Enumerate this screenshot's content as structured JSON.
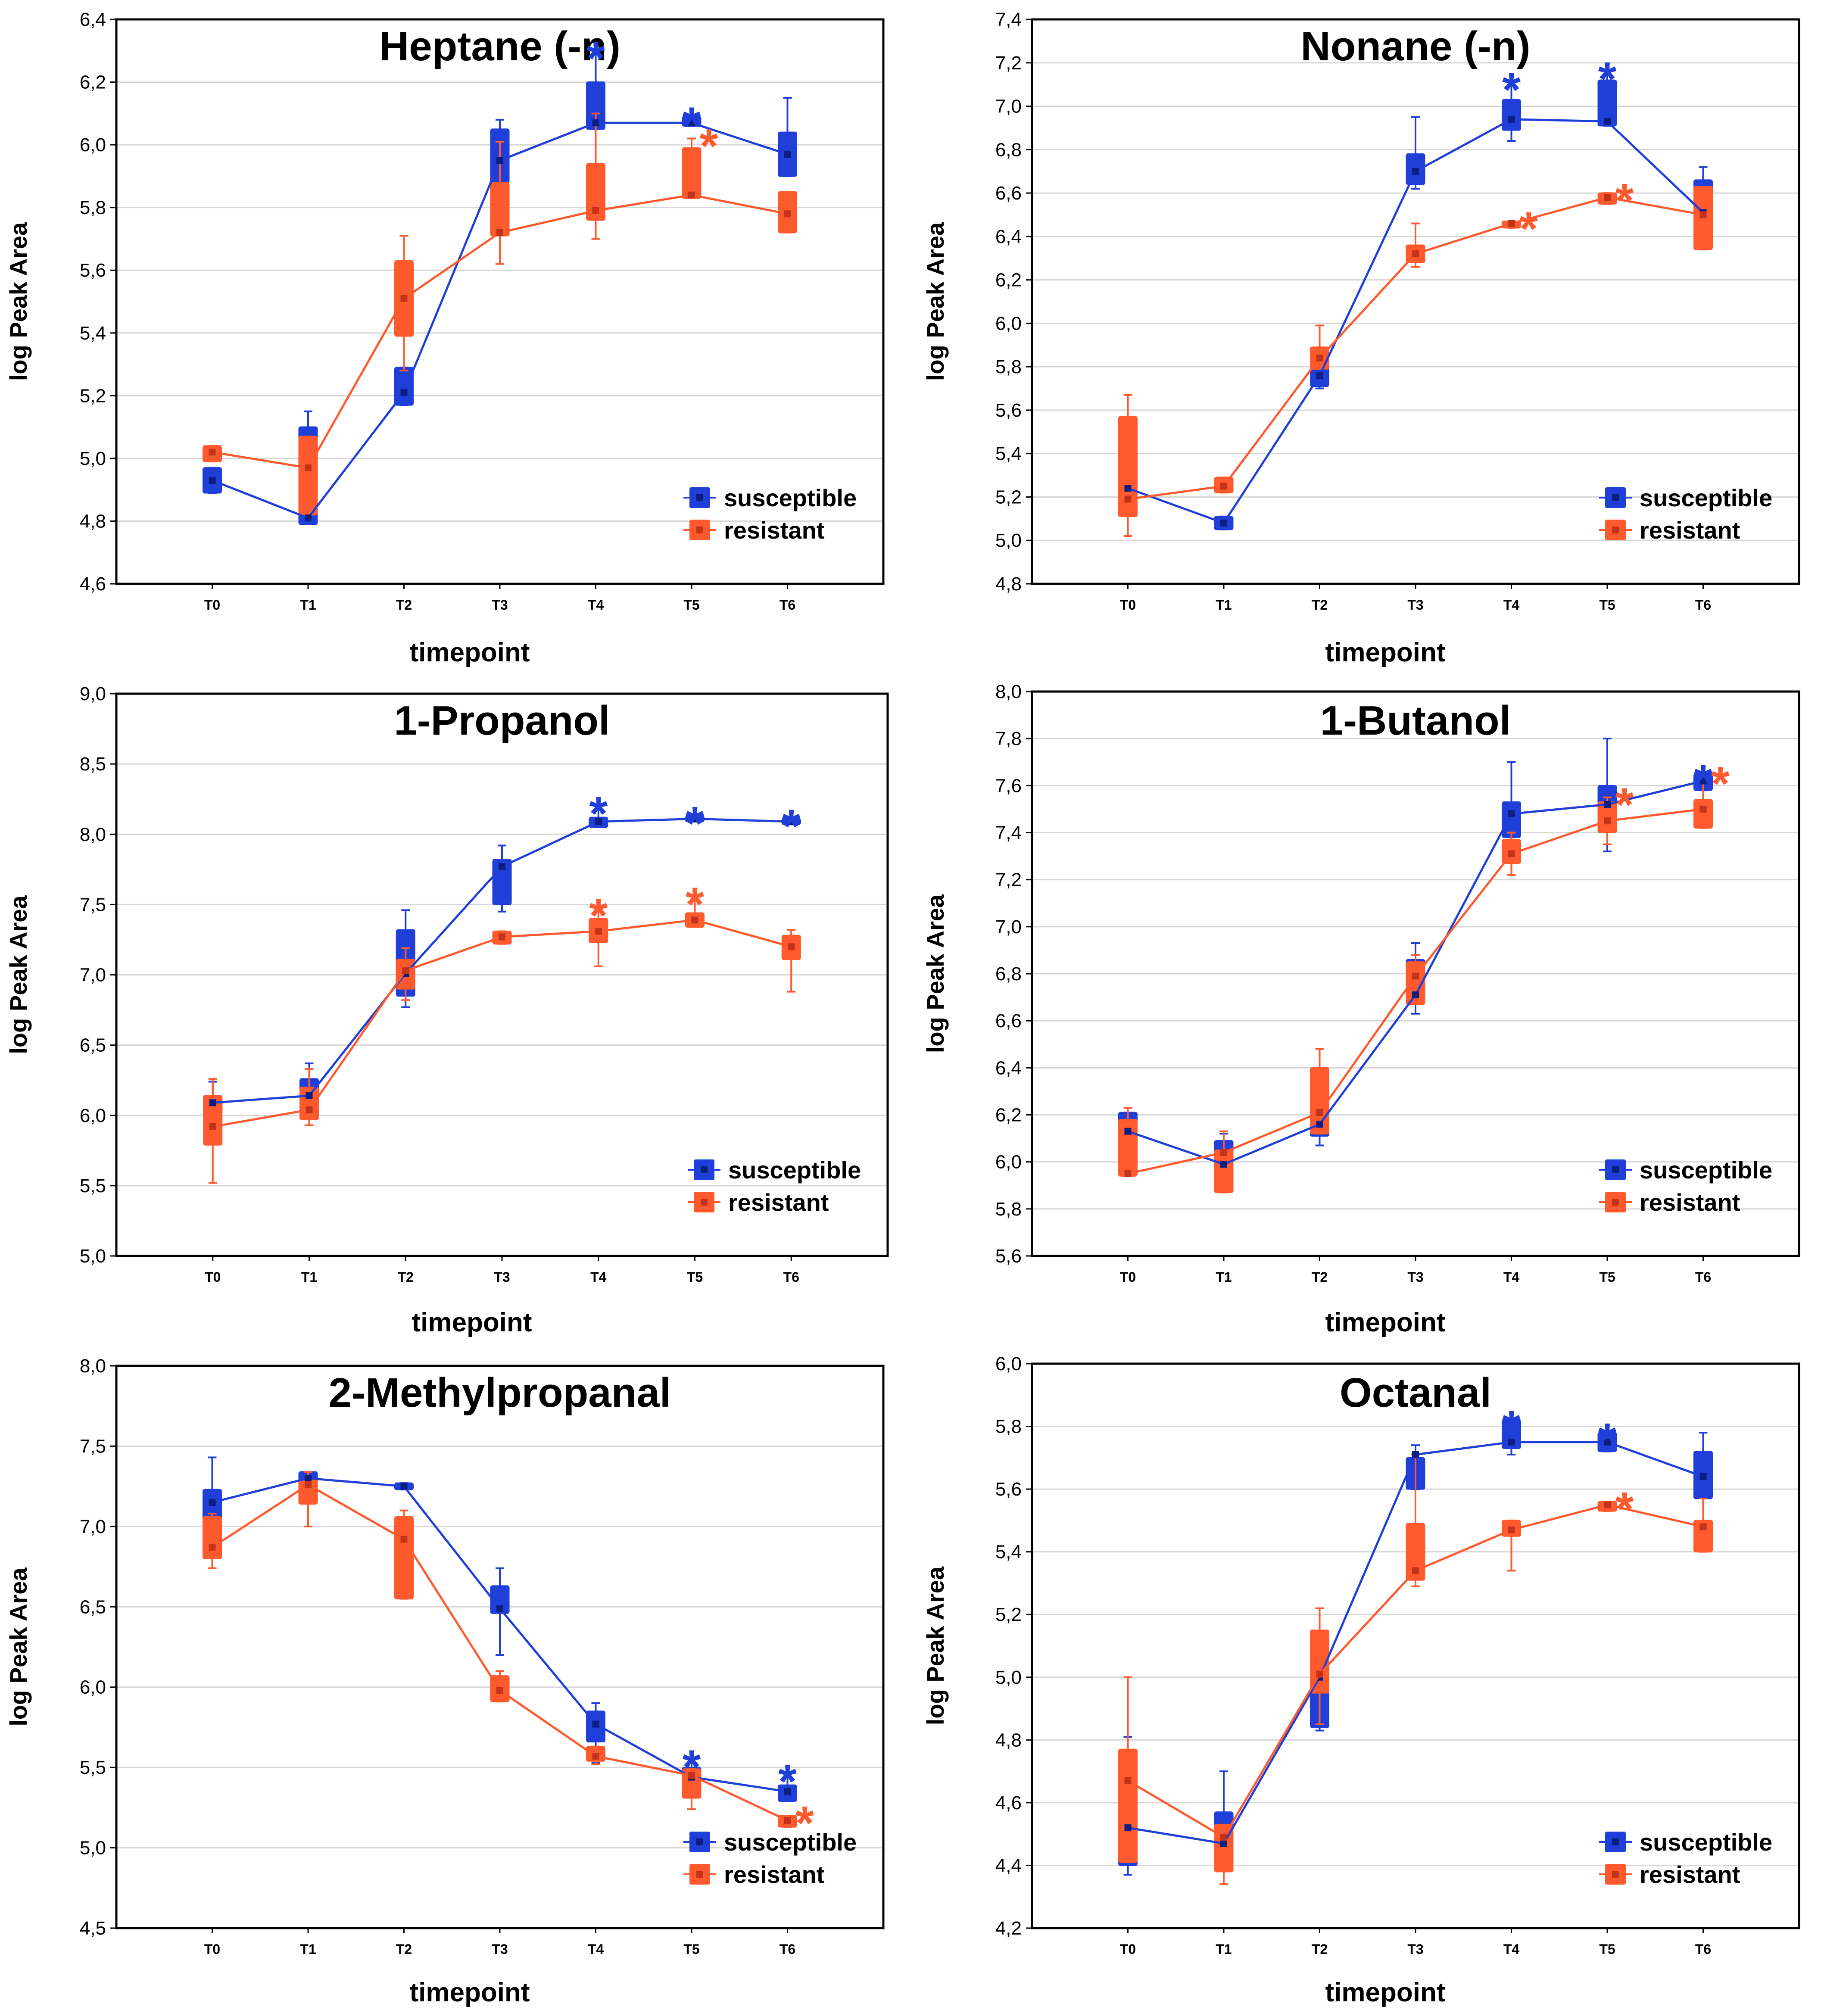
{
  "chart_data": [
    {
      "type": "line",
      "title": "Heptane (-n)",
      "xlabel": "timepoint",
      "ylabel": "log Peak Area",
      "categories": [
        "T0",
        "T1",
        "T2",
        "T3",
        "T4",
        "T5",
        "T6"
      ],
      "ylim": [
        4.6,
        6.4
      ],
      "yticks": [
        "4,6",
        "4,8",
        "5,0",
        "5,2",
        "5,4",
        "5,6",
        "5,8",
        "6,0",
        "6,2",
        "6,4"
      ],
      "legend": [
        "susceptible",
        "resistant"
      ],
      "series": [
        {
          "name": "susceptible",
          "color": "#1f3fd8",
          "values": [
            4.93,
            4.81,
            5.21,
            5.95,
            6.07,
            6.07,
            5.97
          ],
          "box_low": [
            4.89,
            4.79,
            5.17,
            5.88,
            6.05,
            6.06,
            5.9
          ],
          "box_high": [
            4.97,
            5.1,
            5.29,
            6.05,
            6.2,
            6.09,
            6.04
          ],
          "whisker_low": [
            4.89,
            4.79,
            5.17,
            5.85,
            6.05,
            6.06,
            5.9
          ],
          "whisker_high": [
            4.97,
            5.15,
            5.29,
            6.08,
            6.3,
            6.09,
            6.15
          ],
          "stars": [
            null,
            null,
            null,
            null,
            "*",
            "*",
            null
          ]
        },
        {
          "name": "resistant",
          "color": "#ff5a2e",
          "values": [
            5.02,
            4.97,
            5.51,
            5.72,
            5.79,
            5.84,
            5.78
          ],
          "box_low": [
            4.99,
            4.82,
            5.39,
            5.71,
            5.76,
            5.83,
            5.72
          ],
          "box_high": [
            5.04,
            5.07,
            5.63,
            5.88,
            5.94,
            5.99,
            5.85
          ],
          "whisker_low": [
            4.99,
            4.82,
            5.28,
            5.62,
            5.7,
            5.83,
            5.72
          ],
          "whisker_high": [
            5.04,
            5.07,
            5.71,
            6.01,
            6.1,
            6.02,
            5.85
          ],
          "stars": [
            null,
            null,
            null,
            null,
            null,
            "*",
            null
          ]
        }
      ]
    },
    {
      "type": "line",
      "title": "Nonane (-n)",
      "xlabel": "timepoint",
      "ylabel": "log Peak Area",
      "categories": [
        "T0",
        "T1",
        "T2",
        "T3",
        "T4",
        "T5",
        "T6"
      ],
      "ylim": [
        4.8,
        7.4
      ],
      "yticks": [
        "4,8",
        "5,0",
        "5,2",
        "5,4",
        "5,6",
        "5,8",
        "6,0",
        "6,2",
        "6,4",
        "6,6",
        "6,8",
        "7,0",
        "7,2",
        "7,4"
      ],
      "legend": [
        "susceptible",
        "resistant"
      ],
      "series": [
        {
          "name": "susceptible",
          "color": "#1f3fd8",
          "values": [
            5.24,
            5.08,
            5.76,
            6.7,
            6.94,
            6.93,
            6.51
          ],
          "box_low": [
            5.22,
            5.05,
            5.71,
            6.64,
            6.89,
            6.91,
            6.49
          ],
          "box_high": [
            5.25,
            5.11,
            5.82,
            6.78,
            7.03,
            7.12,
            6.66
          ],
          "whisker_low": [
            5.22,
            5.05,
            5.7,
            6.62,
            6.84,
            6.91,
            6.49
          ],
          "whisker_high": [
            5.25,
            5.11,
            5.83,
            6.95,
            7.11,
            7.16,
            6.72
          ],
          "stars": [
            null,
            null,
            null,
            null,
            "*",
            "*",
            null
          ]
        },
        {
          "name": "resistant",
          "color": "#ff5a2e",
          "values": [
            5.19,
            5.25,
            5.84,
            6.32,
            6.46,
            6.58,
            6.5
          ],
          "box_low": [
            5.11,
            5.22,
            5.79,
            6.28,
            6.44,
            6.55,
            6.34
          ],
          "box_high": [
            5.57,
            5.29,
            5.89,
            6.36,
            6.47,
            6.6,
            6.63
          ],
          "whisker_low": [
            5.02,
            5.22,
            5.79,
            6.26,
            6.44,
            6.55,
            6.34
          ],
          "whisker_high": [
            5.67,
            5.29,
            5.99,
            6.46,
            6.47,
            6.6,
            6.63
          ],
          "stars": [
            null,
            null,
            null,
            null,
            "*",
            "*",
            null
          ]
        }
      ]
    },
    {
      "type": "line",
      "title": "1-Propanol",
      "xlabel": "timepoint",
      "ylabel": "log Peak Area",
      "categories": [
        "T0",
        "T1",
        "T2",
        "T3",
        "T4",
        "T5",
        "T6"
      ],
      "ylim": [
        5.0,
        9.0
      ],
      "yticks": [
        "5,0",
        "5,5",
        "6,0",
        "6,5",
        "7,0",
        "7,5",
        "8,0",
        "8,5",
        "9,0"
      ],
      "legend": [
        "susceptible",
        "resistant"
      ],
      "series": [
        {
          "name": "susceptible",
          "color": "#1f3fd8",
          "values": [
            6.09,
            6.14,
            7.01,
            7.77,
            8.09,
            8.11,
            8.09
          ],
          "box_low": [
            6.03,
            6.1,
            6.85,
            7.5,
            8.05,
            8.09,
            8.07
          ],
          "box_high": [
            6.14,
            6.26,
            7.32,
            7.82,
            8.12,
            8.13,
            8.11
          ],
          "whisker_low": [
            6.03,
            6.1,
            6.77,
            7.45,
            8.05,
            8.09,
            8.07
          ],
          "whisker_high": [
            6.24,
            6.37,
            7.46,
            7.92,
            8.2,
            8.13,
            8.11
          ],
          "stars": [
            null,
            null,
            null,
            null,
            "*",
            "*",
            "*"
          ]
        },
        {
          "name": "resistant",
          "color": "#ff5a2e",
          "values": [
            5.92,
            6.04,
            7.03,
            7.27,
            7.31,
            7.39,
            7.2
          ],
          "box_low": [
            5.79,
            5.97,
            6.9,
            7.22,
            7.23,
            7.34,
            7.11
          ],
          "box_high": [
            6.14,
            6.2,
            7.11,
            7.31,
            7.4,
            7.44,
            7.28
          ],
          "whisker_low": [
            5.52,
            5.93,
            6.82,
            7.22,
            7.06,
            7.34,
            6.88
          ],
          "whisker_high": [
            6.26,
            6.33,
            7.19,
            7.31,
            7.46,
            7.54,
            7.32
          ],
          "stars": [
            null,
            null,
            null,
            null,
            "*",
            "*",
            null
          ]
        }
      ]
    },
    {
      "type": "line",
      "title": "1-Butanol",
      "xlabel": "timepoint",
      "ylabel": "log Peak Area",
      "categories": [
        "T0",
        "T1",
        "T2",
        "T3",
        "T4",
        "T5",
        "T6"
      ],
      "ylim": [
        5.6,
        8.0
      ],
      "yticks": [
        "5,6",
        "5,8",
        "6,0",
        "6,2",
        "6,4",
        "6,6",
        "6,8",
        "7,0",
        "7,2",
        "7,4",
        "7,6",
        "7,8",
        "8,0"
      ],
      "legend": [
        "susceptible",
        "resistant"
      ],
      "series": [
        {
          "name": "susceptible",
          "color": "#1f3fd8",
          "values": [
            6.13,
            5.99,
            6.16,
            6.71,
            7.48,
            7.52,
            7.62
          ],
          "box_low": [
            5.98,
            5.96,
            6.11,
            6.67,
            7.38,
            7.45,
            7.58
          ],
          "box_high": [
            6.21,
            6.09,
            6.22,
            6.86,
            7.53,
            7.6,
            7.65
          ],
          "whisker_low": [
            5.98,
            5.96,
            6.07,
            6.63,
            7.38,
            7.32,
            7.58
          ],
          "whisker_high": [
            6.21,
            6.12,
            6.24,
            6.93,
            7.7,
            7.8,
            7.65
          ],
          "stars": [
            null,
            null,
            null,
            null,
            null,
            null,
            "*"
          ]
        },
        {
          "name": "resistant",
          "color": "#ff5a2e",
          "values": [
            5.95,
            6.04,
            6.21,
            6.79,
            7.31,
            7.45,
            7.5
          ],
          "box_low": [
            5.94,
            5.87,
            6.12,
            6.67,
            7.27,
            7.4,
            7.42
          ],
          "box_high": [
            6.18,
            6.05,
            6.4,
            6.85,
            7.37,
            7.53,
            7.54
          ],
          "whisker_low": [
            5.94,
            5.87,
            6.12,
            6.67,
            7.22,
            7.35,
            7.42
          ],
          "whisker_high": [
            6.23,
            6.13,
            6.48,
            6.88,
            7.4,
            7.55,
            7.64
          ],
          "stars": [
            null,
            null,
            null,
            null,
            null,
            "*",
            "*"
          ]
        }
      ]
    },
    {
      "type": "line",
      "title": "2-Methylpropanal",
      "xlabel": "timepoint",
      "ylabel": "log Peak Area",
      "categories": [
        "T0",
        "T1",
        "T2",
        "T3",
        "T4",
        "T5",
        "T6"
      ],
      "ylim": [
        4.5,
        8.0
      ],
      "yticks": [
        "4,5",
        "5,0",
        "5,5",
        "6,0",
        "6,5",
        "7,0",
        "7,5",
        "8,0"
      ],
      "legend": [
        "susceptible",
        "resistant"
      ],
      "series": [
        {
          "name": "susceptible",
          "color": "#1f3fd8",
          "values": [
            7.15,
            7.3,
            7.25,
            6.49,
            5.77,
            5.44,
            5.35
          ],
          "box_low": [
            7.04,
            7.27,
            7.23,
            6.46,
            5.66,
            5.38,
            5.29
          ],
          "box_high": [
            7.23,
            7.34,
            7.27,
            6.63,
            5.85,
            5.5,
            5.39
          ],
          "whisker_low": [
            7.0,
            7.27,
            7.23,
            6.2,
            5.53,
            5.33,
            5.29
          ],
          "whisker_high": [
            7.43,
            7.34,
            7.27,
            6.74,
            5.9,
            5.55,
            5.46
          ],
          "stars": [
            null,
            null,
            null,
            null,
            null,
            "*",
            "*"
          ]
        },
        {
          "name": "resistant",
          "color": "#ff5a2e",
          "values": [
            6.87,
            7.26,
            6.92,
            5.98,
            5.57,
            5.45,
            5.17
          ],
          "box_low": [
            6.8,
            7.14,
            6.55,
            5.91,
            5.54,
            5.31,
            5.13
          ],
          "box_high": [
            7.06,
            7.29,
            7.06,
            6.07,
            5.63,
            5.49,
            5.2
          ],
          "whisker_low": [
            6.74,
            7.0,
            6.55,
            5.91,
            5.52,
            5.24,
            5.13
          ],
          "whisker_high": [
            7.08,
            7.34,
            7.1,
            6.1,
            5.63,
            5.49,
            5.2
          ],
          "stars": [
            null,
            null,
            null,
            null,
            null,
            null,
            "*"
          ]
        }
      ]
    },
    {
      "type": "line",
      "title": "Octanal",
      "xlabel": "timepoint",
      "ylabel": "log Peak Area",
      "categories": [
        "T0",
        "T1",
        "T2",
        "T3",
        "T4",
        "T5",
        "T6"
      ],
      "ylim": [
        4.2,
        6.0
      ],
      "yticks": [
        "4,2",
        "4,4",
        "4,6",
        "4,8",
        "5,0",
        "5,2",
        "5,4",
        "5,6",
        "5,8",
        "6,0"
      ],
      "legend": [
        "susceptible",
        "resistant"
      ],
      "series": [
        {
          "name": "susceptible",
          "color": "#1f3fd8",
          "values": [
            4.52,
            4.47,
            5.0,
            5.71,
            5.75,
            5.75,
            5.64
          ],
          "box_low": [
            4.4,
            4.43,
            4.84,
            5.6,
            5.73,
            5.72,
            5.57
          ],
          "box_high": [
            4.56,
            4.57,
            5.05,
            5.7,
            5.82,
            5.78,
            5.72
          ],
          "whisker_low": [
            4.37,
            4.43,
            4.83,
            5.6,
            5.71,
            5.72,
            5.57
          ],
          "whisker_high": [
            4.81,
            4.7,
            5.05,
            5.74,
            5.82,
            5.78,
            5.78
          ],
          "stars": [
            null,
            null,
            null,
            null,
            "*",
            "*",
            null
          ]
        },
        {
          "name": "resistant",
          "color": "#ff5a2e",
          "values": [
            4.67,
            4.49,
            5.01,
            5.34,
            5.47,
            5.55,
            5.48
          ],
          "box_low": [
            4.41,
            4.38,
            4.95,
            5.31,
            5.45,
            5.53,
            5.4
          ],
          "box_high": [
            4.77,
            4.53,
            5.15,
            5.49,
            5.5,
            5.56,
            5.5
          ],
          "whisker_low": [
            4.41,
            4.34,
            4.85,
            5.29,
            5.34,
            5.53,
            5.4
          ],
          "whisker_high": [
            5.0,
            4.53,
            5.22,
            5.71,
            5.5,
            5.56,
            5.57
          ],
          "stars": [
            null,
            null,
            null,
            null,
            null,
            "*",
            null
          ]
        }
      ]
    }
  ]
}
